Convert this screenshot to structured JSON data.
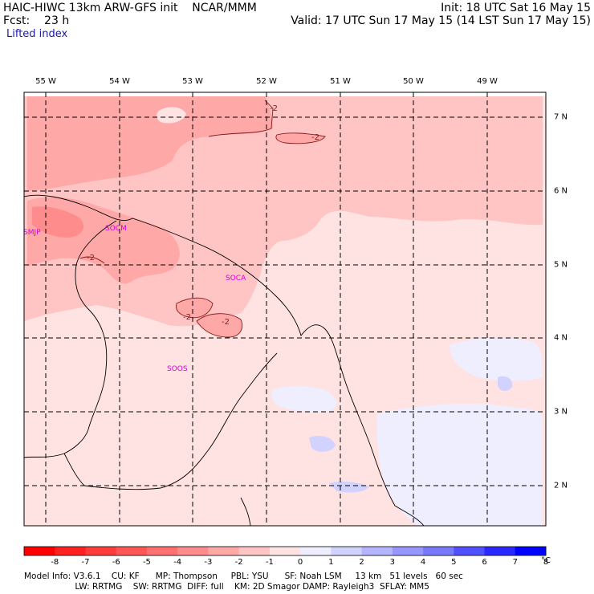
{
  "header": {
    "model": "HAIC-HIWC 13km ARW-GFS init    NCAR/MMM",
    "init": "Init: 18 UTC Sat 16 May 15",
    "fcst": "Fcst:    23 h",
    "valid": "Valid: 17 UTC Sun 17 May 15 (14 LST Sun 17 May 15)",
    "field": "Lifted index"
  },
  "map": {
    "lon_labels": [
      "55 W",
      "54 W",
      "53 W",
      "52 W",
      "51 W",
      "50 W",
      "49 W"
    ],
    "lat_labels": [
      "7 N",
      "6 N",
      "5 N",
      "4 N",
      "3 N",
      "2 N"
    ],
    "stations": [
      "SMJP",
      "SOCM",
      "SOCA",
      "SOOS"
    ],
    "contour_labels": [
      "-2",
      "-2",
      "-2",
      "-2",
      "-2"
    ]
  },
  "colorbar": {
    "labels": [
      "-8",
      "-7",
      "-6",
      "-5",
      "-4",
      "-3",
      "-2",
      "-1",
      "0",
      "1",
      "2",
      "3",
      "4",
      "5",
      "6",
      "7",
      "8"
    ],
    "unit": "°C",
    "colors": [
      "#ff0000",
      "#ff2020",
      "#ff3c3c",
      "#ff5656",
      "#ff7070",
      "#ff8c8c",
      "#ffa8a8",
      "#ffc4c4",
      "#ffe2e2",
      "#eeeeff",
      "#d2d2ff",
      "#b4b4ff",
      "#9696ff",
      "#7878ff",
      "#5050ff",
      "#2828ff",
      "#0000ff"
    ]
  },
  "footer": {
    "line1": "Model Info: V3.6.1    CU: KF      MP: Thompson     PBL: YSU      SF: Noah LSM     13 km   51 levels   60 sec",
    "line2": "                   LW: RRTMG    SW: RRTMG  DIFF: full    KM: 2D Smagor DAMP: Rayleigh3  SFLAY: MM5"
  }
}
